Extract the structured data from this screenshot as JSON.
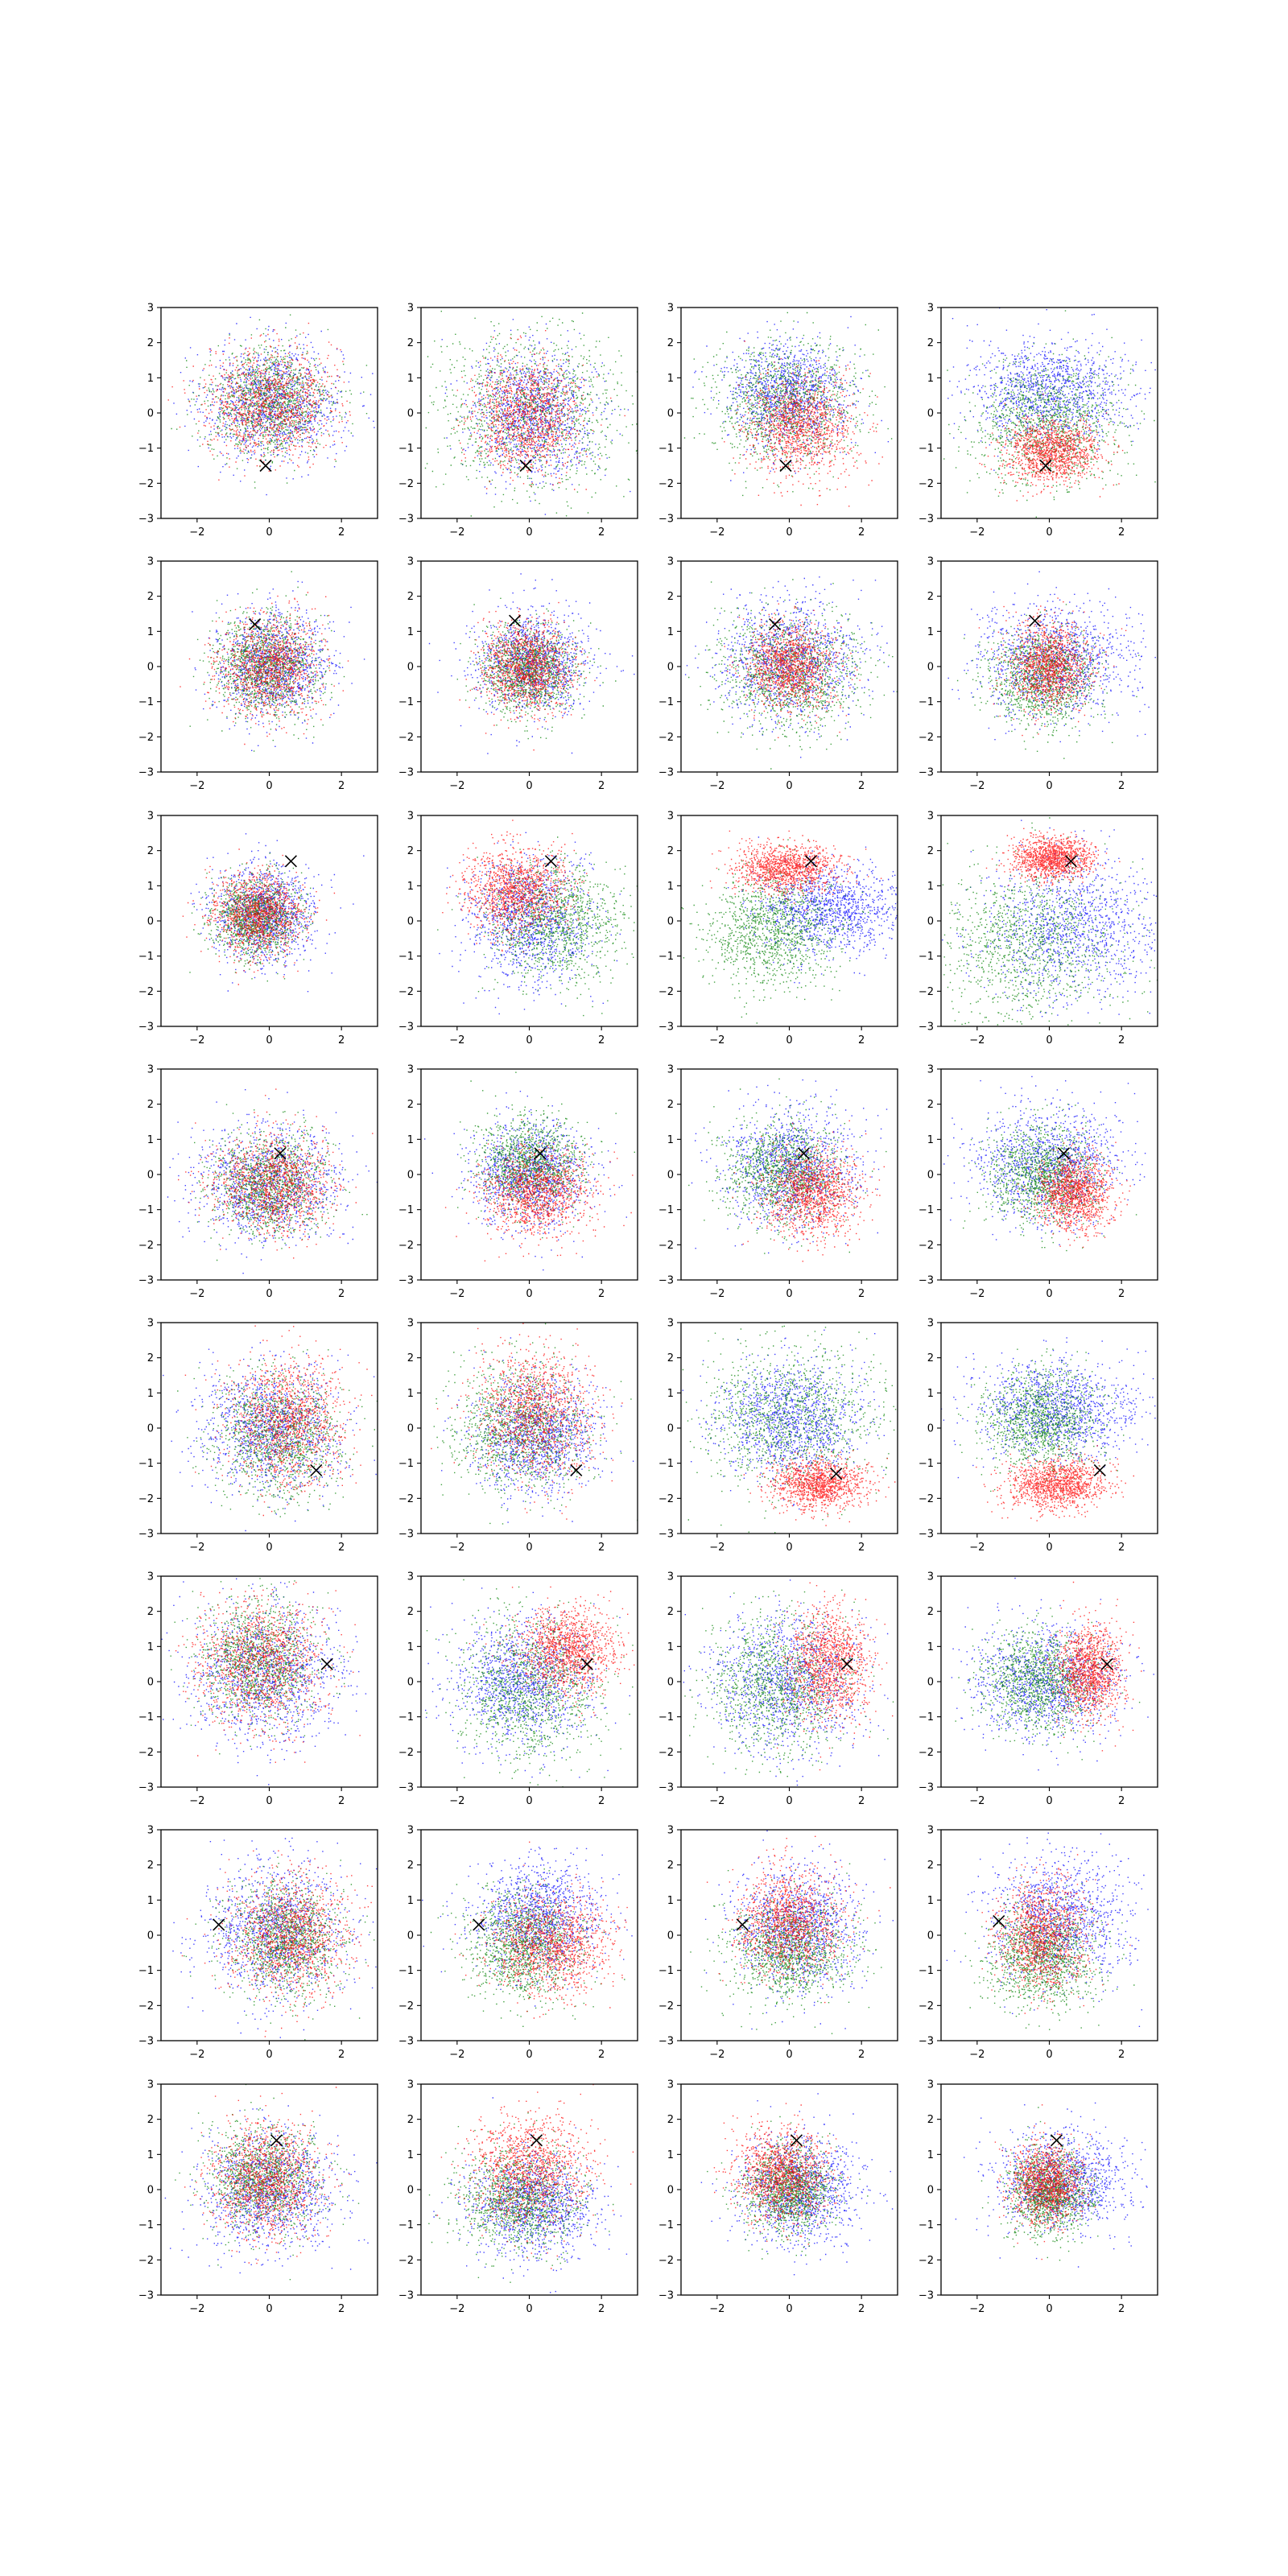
{
  "figure": {
    "layout": {
      "rows": 8,
      "cols": 4
    },
    "colors": {
      "red": "#ff0000",
      "green": "#008000",
      "blue": "#0000ff",
      "marker": "#000000"
    }
  },
  "chart_data": {
    "type": "scatter",
    "title": "",
    "xlabel": "",
    "ylabel": "",
    "xlim": [
      -3,
      3
    ],
    "ylim": [
      -3,
      3
    ],
    "xticks": [
      -2,
      0,
      2
    ],
    "yticks": [
      -3,
      -2,
      -1,
      0,
      1,
      2,
      3
    ],
    "grid": false,
    "legend": "none",
    "series_names": [],
    "points_per_series": 1200,
    "panels": [
      {
        "row": 0,
        "col": 0,
        "marker": [
          -0.1,
          -1.5
        ],
        "clusters": [
          {
            "color": "red",
            "cx": 0,
            "cy": 0.3,
            "sx": 0.85,
            "sy": 0.75
          },
          {
            "color": "green",
            "cx": 0,
            "cy": 0.3,
            "sx": 0.85,
            "sy": 0.75
          },
          {
            "color": "blue",
            "cx": 0.1,
            "cy": 0.3,
            "sx": 0.95,
            "sy": 0.8
          }
        ]
      },
      {
        "row": 0,
        "col": 1,
        "marker": [
          -0.1,
          -1.5
        ],
        "clusters": [
          {
            "color": "red",
            "cx": -0.1,
            "cy": -0.1,
            "sx": 0.75,
            "sy": 0.75
          },
          {
            "color": "green",
            "cx": 0,
            "cy": 0,
            "sx": 1.3,
            "sy": 1.15
          },
          {
            "color": "blue",
            "cx": 0.1,
            "cy": 0,
            "sx": 0.85,
            "sy": 0.85
          }
        ]
      },
      {
        "row": 0,
        "col": 2,
        "marker": [
          -0.1,
          -1.5
        ],
        "clusters": [
          {
            "color": "red",
            "cx": 0.3,
            "cy": -0.4,
            "sx": 0.75,
            "sy": 0.7
          },
          {
            "color": "green",
            "cx": -0.2,
            "cy": 0.3,
            "sx": 1.0,
            "sy": 0.9
          },
          {
            "color": "blue",
            "cx": -0.1,
            "cy": 0.5,
            "sx": 0.85,
            "sy": 0.75
          }
        ]
      },
      {
        "row": 0,
        "col": 3,
        "marker": [
          -0.1,
          -1.5
        ],
        "clusters": [
          {
            "color": "red",
            "cx": 0,
            "cy": -1.1,
            "sx": 0.65,
            "sy": 0.45
          },
          {
            "color": "green",
            "cx": -0.1,
            "cy": -0.3,
            "sx": 1.0,
            "sy": 0.85
          },
          {
            "color": "blue",
            "cx": 0,
            "cy": 0.6,
            "sx": 1.1,
            "sy": 0.7
          }
        ]
      },
      {
        "row": 1,
        "col": 0,
        "marker": [
          -0.4,
          1.2
        ],
        "clusters": [
          {
            "color": "red",
            "cx": 0,
            "cy": 0,
            "sx": 0.7,
            "sy": 0.7
          },
          {
            "color": "green",
            "cx": -0.1,
            "cy": 0,
            "sx": 0.7,
            "sy": 0.7
          },
          {
            "color": "blue",
            "cx": 0.1,
            "cy": 0,
            "sx": 0.75,
            "sy": 0.75
          }
        ]
      },
      {
        "row": 1,
        "col": 1,
        "marker": [
          -0.4,
          1.3
        ],
        "clusters": [
          {
            "color": "red",
            "cx": -0.1,
            "cy": 0,
            "sx": 0.6,
            "sy": 0.6
          },
          {
            "color": "green",
            "cx": 0,
            "cy": -0.1,
            "sx": 0.65,
            "sy": 0.6
          },
          {
            "color": "blue",
            "cx": 0.1,
            "cy": 0.1,
            "sx": 0.75,
            "sy": 0.7
          }
        ]
      },
      {
        "row": 1,
        "col": 2,
        "marker": [
          -0.4,
          1.2
        ],
        "clusters": [
          {
            "color": "red",
            "cx": 0,
            "cy": 0,
            "sx": 0.6,
            "sy": 0.6
          },
          {
            "color": "green",
            "cx": 0,
            "cy": -0.2,
            "sx": 1.0,
            "sy": 0.85
          },
          {
            "color": "blue",
            "cx": 0,
            "cy": 0.2,
            "sx": 0.95,
            "sy": 0.85
          }
        ]
      },
      {
        "row": 1,
        "col": 3,
        "marker": [
          -0.4,
          1.3
        ],
        "clusters": [
          {
            "color": "red",
            "cx": 0,
            "cy": 0,
            "sx": 0.55,
            "sy": 0.6
          },
          {
            "color": "green",
            "cx": -0.2,
            "cy": -0.3,
            "sx": 0.75,
            "sy": 0.7
          },
          {
            "color": "blue",
            "cx": 0.2,
            "cy": 0.2,
            "sx": 1.1,
            "sy": 0.8
          }
        ]
      },
      {
        "row": 2,
        "col": 0,
        "marker": [
          0.6,
          1.7
        ],
        "clusters": [
          {
            "color": "red",
            "cx": -0.3,
            "cy": 0.2,
            "sx": 0.6,
            "sy": 0.55
          },
          {
            "color": "green",
            "cx": -0.4,
            "cy": 0.1,
            "sx": 0.6,
            "sy": 0.55
          },
          {
            "color": "blue",
            "cx": -0.2,
            "cy": 0.2,
            "sx": 0.7,
            "sy": 0.65
          }
        ]
      },
      {
        "row": 2,
        "col": 1,
        "marker": [
          0.6,
          1.7
        ],
        "clusters": [
          {
            "color": "red",
            "cx": -0.4,
            "cy": 0.9,
            "sx": 0.7,
            "sy": 0.6
          },
          {
            "color": "green",
            "cx": 0.7,
            "cy": 0,
            "sx": 0.9,
            "sy": 0.85
          },
          {
            "color": "blue",
            "cx": 0,
            "cy": 0,
            "sx": 0.85,
            "sy": 0.85
          }
        ]
      },
      {
        "row": 2,
        "col": 2,
        "marker": [
          0.6,
          1.7
        ],
        "clusters": [
          {
            "color": "red",
            "cx": -0.1,
            "cy": 1.5,
            "sx": 0.7,
            "sy": 0.35
          },
          {
            "color": "green",
            "cx": -0.5,
            "cy": -0.3,
            "sx": 0.9,
            "sy": 0.8
          },
          {
            "color": "blue",
            "cx": 1.1,
            "cy": 0.3,
            "sx": 1.0,
            "sy": 0.6
          }
        ]
      },
      {
        "row": 2,
        "col": 3,
        "marker": [
          0.6,
          1.7
        ],
        "clusters": [
          {
            "color": "red",
            "cx": 0.1,
            "cy": 1.8,
            "sx": 0.55,
            "sy": 0.3
          },
          {
            "color": "green",
            "cx": -0.6,
            "cy": -0.6,
            "sx": 1.3,
            "sy": 1.1
          },
          {
            "color": "blue",
            "cx": 0.7,
            "cy": -0.2,
            "sx": 1.2,
            "sy": 1.0
          }
        ]
      },
      {
        "row": 3,
        "col": 0,
        "marker": [
          0.3,
          0.6
        ],
        "clusters": [
          {
            "color": "red",
            "cx": 0.1,
            "cy": -0.3,
            "sx": 0.8,
            "sy": 0.7
          },
          {
            "color": "green",
            "cx": 0,
            "cy": -0.3,
            "sx": 0.75,
            "sy": 0.7
          },
          {
            "color": "blue",
            "cx": 0,
            "cy": -0.2,
            "sx": 0.95,
            "sy": 0.8
          }
        ]
      },
      {
        "row": 3,
        "col": 1,
        "marker": [
          0.3,
          0.6
        ],
        "clusters": [
          {
            "color": "red",
            "cx": 0.2,
            "cy": -0.5,
            "sx": 0.75,
            "sy": 0.6
          },
          {
            "color": "green",
            "cx": 0,
            "cy": 0.3,
            "sx": 0.7,
            "sy": 0.65
          },
          {
            "color": "blue",
            "cx": 0,
            "cy": 0,
            "sx": 0.8,
            "sy": 0.75
          }
        ]
      },
      {
        "row": 3,
        "col": 2,
        "marker": [
          0.4,
          0.6
        ],
        "clusters": [
          {
            "color": "red",
            "cx": 0.6,
            "cy": -0.5,
            "sx": 0.65,
            "sy": 0.6
          },
          {
            "color": "green",
            "cx": -0.2,
            "cy": 0.1,
            "sx": 0.8,
            "sy": 0.75
          },
          {
            "color": "blue",
            "cx": 0,
            "cy": 0.2,
            "sx": 0.9,
            "sy": 0.85
          }
        ]
      },
      {
        "row": 3,
        "col": 3,
        "marker": [
          0.4,
          0.6
        ],
        "clusters": [
          {
            "color": "red",
            "cx": 0.7,
            "cy": -0.5,
            "sx": 0.5,
            "sy": 0.55
          },
          {
            "color": "green",
            "cx": -0.2,
            "cy": 0,
            "sx": 0.75,
            "sy": 0.7
          },
          {
            "color": "blue",
            "cx": 0,
            "cy": 0.3,
            "sx": 1.0,
            "sy": 0.8
          }
        ]
      },
      {
        "row": 4,
        "col": 0,
        "marker": [
          1.3,
          -1.2
        ],
        "clusters": [
          {
            "color": "red",
            "cx": 0.5,
            "cy": 0.2,
            "sx": 0.8,
            "sy": 0.9
          },
          {
            "color": "green",
            "cx": 0.2,
            "cy": -0.2,
            "sx": 0.85,
            "sy": 0.85
          },
          {
            "color": "blue",
            "cx": 0,
            "cy": 0,
            "sx": 0.95,
            "sy": 0.9
          }
        ]
      },
      {
        "row": 4,
        "col": 1,
        "marker": [
          1.3,
          -1.2
        ],
        "clusters": [
          {
            "color": "red",
            "cx": 0.2,
            "cy": 0.4,
            "sx": 0.8,
            "sy": 0.9
          },
          {
            "color": "green",
            "cx": -0.3,
            "cy": 0,
            "sx": 0.9,
            "sy": 0.9
          },
          {
            "color": "blue",
            "cx": 0.2,
            "cy": -0.2,
            "sx": 0.85,
            "sy": 0.8
          }
        ]
      },
      {
        "row": 4,
        "col": 2,
        "marker": [
          1.3,
          -1.3
        ],
        "clusters": [
          {
            "color": "red",
            "cx": 0.8,
            "cy": -1.6,
            "sx": 0.65,
            "sy": 0.35
          },
          {
            "color": "green",
            "cx": 0,
            "cy": 0.3,
            "sx": 1.3,
            "sy": 1.0
          },
          {
            "color": "blue",
            "cx": 0,
            "cy": 0.2,
            "sx": 1.0,
            "sy": 0.8
          }
        ]
      },
      {
        "row": 4,
        "col": 3,
        "marker": [
          1.4,
          -1.2
        ],
        "clusters": [
          {
            "color": "red",
            "cx": 0.2,
            "cy": -1.6,
            "sx": 0.7,
            "sy": 0.35
          },
          {
            "color": "green",
            "cx": -0.2,
            "cy": 0.2,
            "sx": 0.8,
            "sy": 0.7
          },
          {
            "color": "blue",
            "cx": 0.2,
            "cy": 0.5,
            "sx": 1.1,
            "sy": 0.7
          }
        ]
      },
      {
        "row": 5,
        "col": 0,
        "marker": [
          1.6,
          0.5
        ],
        "clusters": [
          {
            "color": "red",
            "cx": -0.3,
            "cy": 0.5,
            "sx": 0.9,
            "sy": 0.9
          },
          {
            "color": "green",
            "cx": -0.3,
            "cy": 0.6,
            "sx": 0.8,
            "sy": 0.8
          },
          {
            "color": "blue",
            "cx": -0.1,
            "cy": 0.3,
            "sx": 1.0,
            "sy": 1.0
          }
        ]
      },
      {
        "row": 5,
        "col": 1,
        "marker": [
          1.6,
          0.5
        ],
        "clusters": [
          {
            "color": "red",
            "cx": 1.0,
            "cy": 0.9,
            "sx": 0.7,
            "sy": 0.6
          },
          {
            "color": "green",
            "cx": 0,
            "cy": -0.2,
            "sx": 1.0,
            "sy": 1.0
          },
          {
            "color": "blue",
            "cx": -0.2,
            "cy": 0,
            "sx": 0.95,
            "sy": 0.9
          }
        ]
      },
      {
        "row": 5,
        "col": 2,
        "marker": [
          1.6,
          0.5
        ],
        "clusters": [
          {
            "color": "red",
            "cx": 1.1,
            "cy": 0.5,
            "sx": 0.55,
            "sy": 0.75
          },
          {
            "color": "green",
            "cx": -0.3,
            "cy": -0.1,
            "sx": 0.95,
            "sy": 0.95
          },
          {
            "color": "blue",
            "cx": -0.1,
            "cy": 0,
            "sx": 1.0,
            "sy": 0.95
          }
        ]
      },
      {
        "row": 5,
        "col": 3,
        "marker": [
          1.6,
          0.5
        ],
        "clusters": [
          {
            "color": "red",
            "cx": 1.1,
            "cy": 0.3,
            "sx": 0.45,
            "sy": 0.65
          },
          {
            "color": "green",
            "cx": -0.3,
            "cy": 0,
            "sx": 0.8,
            "sy": 0.7
          },
          {
            "color": "blue",
            "cx": -0.1,
            "cy": 0,
            "sx": 1.0,
            "sy": 0.75
          }
        ]
      },
      {
        "row": 6,
        "col": 0,
        "marker": [
          -1.4,
          0.3
        ],
        "clusters": [
          {
            "color": "red",
            "cx": 0.6,
            "cy": 0,
            "sx": 0.8,
            "sy": 0.8
          },
          {
            "color": "green",
            "cx": 0.4,
            "cy": -0.1,
            "sx": 0.8,
            "sy": 0.8
          },
          {
            "color": "blue",
            "cx": 0.2,
            "cy": 0.1,
            "sx": 0.95,
            "sy": 0.95
          }
        ]
      },
      {
        "row": 6,
        "col": 1,
        "marker": [
          -1.4,
          0.3
        ],
        "clusters": [
          {
            "color": "red",
            "cx": 0.6,
            "cy": -0.3,
            "sx": 0.8,
            "sy": 0.7
          },
          {
            "color": "green",
            "cx": -0.2,
            "cy": -0.3,
            "sx": 0.8,
            "sy": 0.75
          },
          {
            "color": "blue",
            "cx": 0.2,
            "cy": 0.5,
            "sx": 0.85,
            "sy": 0.8
          }
        ]
      },
      {
        "row": 6,
        "col": 2,
        "marker": [
          -1.3,
          0.3
        ],
        "clusters": [
          {
            "color": "red",
            "cx": 0,
            "cy": 0.3,
            "sx": 0.7,
            "sy": 0.75
          },
          {
            "color": "green",
            "cx": 0,
            "cy": -0.4,
            "sx": 0.85,
            "sy": 0.75
          },
          {
            "color": "blue",
            "cx": 0.2,
            "cy": 0.2,
            "sx": 0.85,
            "sy": 0.85
          }
        ]
      },
      {
        "row": 6,
        "col": 3,
        "marker": [
          -1.4,
          0.4
        ],
        "clusters": [
          {
            "color": "red",
            "cx": -0.2,
            "cy": 0,
            "sx": 0.6,
            "sy": 0.75
          },
          {
            "color": "green",
            "cx": -0.2,
            "cy": -0.6,
            "sx": 0.75,
            "sy": 0.75
          },
          {
            "color": "blue",
            "cx": 0.3,
            "cy": 0.5,
            "sx": 1.0,
            "sy": 0.9
          }
        ]
      },
      {
        "row": 7,
        "col": 0,
        "marker": [
          0.2,
          1.4
        ],
        "clusters": [
          {
            "color": "red",
            "cx": -0.1,
            "cy": 0.2,
            "sx": 0.75,
            "sy": 0.8
          },
          {
            "color": "green",
            "cx": -0.2,
            "cy": 0.3,
            "sx": 0.75,
            "sy": 0.75
          },
          {
            "color": "blue",
            "cx": 0,
            "cy": 0,
            "sx": 0.9,
            "sy": 0.85
          }
        ]
      },
      {
        "row": 7,
        "col": 1,
        "marker": [
          0.2,
          1.4
        ],
        "clusters": [
          {
            "color": "red",
            "cx": 0,
            "cy": 0.6,
            "sx": 0.8,
            "sy": 0.75
          },
          {
            "color": "green",
            "cx": -0.3,
            "cy": -0.3,
            "sx": 0.8,
            "sy": 0.7
          },
          {
            "color": "blue",
            "cx": 0.1,
            "cy": -0.4,
            "sx": 0.85,
            "sy": 0.7
          }
        ]
      },
      {
        "row": 7,
        "col": 2,
        "marker": [
          0.2,
          1.4
        ],
        "clusters": [
          {
            "color": "red",
            "cx": -0.2,
            "cy": 0.4,
            "sx": 0.6,
            "sy": 0.65
          },
          {
            "color": "green",
            "cx": 0,
            "cy": 0,
            "sx": 0.6,
            "sy": 0.6
          },
          {
            "color": "blue",
            "cx": 0.3,
            "cy": 0,
            "sx": 0.8,
            "sy": 0.75
          }
        ]
      },
      {
        "row": 7,
        "col": 3,
        "marker": [
          0.2,
          1.4
        ],
        "clusters": [
          {
            "color": "red",
            "cx": -0.1,
            "cy": 0.2,
            "sx": 0.5,
            "sy": 0.55
          },
          {
            "color": "green",
            "cx": 0,
            "cy": -0.1,
            "sx": 0.55,
            "sy": 0.6
          },
          {
            "color": "blue",
            "cx": 0.3,
            "cy": 0.2,
            "sx": 0.9,
            "sy": 0.7
          }
        ]
      }
    ]
  }
}
